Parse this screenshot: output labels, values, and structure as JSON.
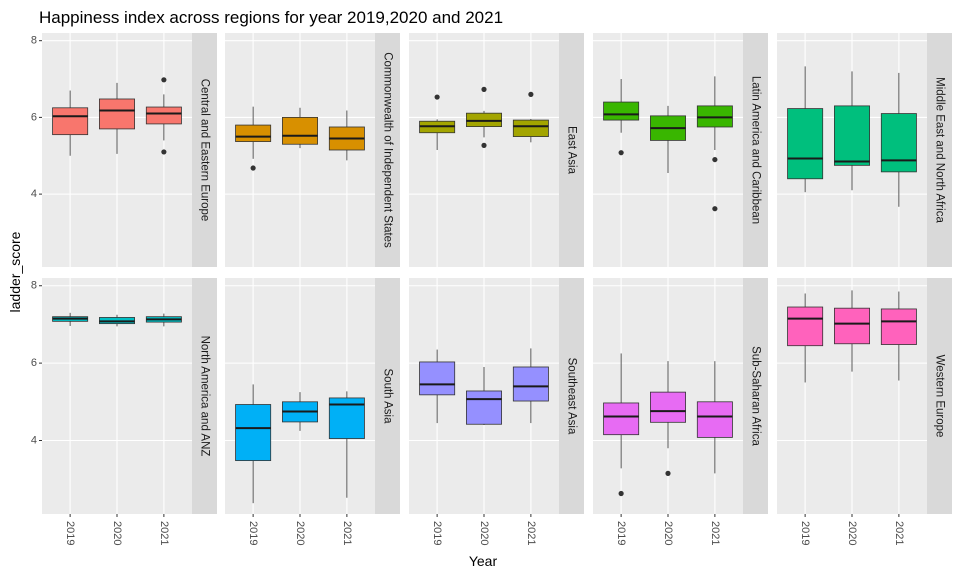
{
  "chart_data": {
    "type": "boxplot",
    "title": "Happiness index across regions for year 2019,2020 and 2021",
    "xlabel": "Year",
    "ylabel": "ladder_score",
    "categories": [
      "2019",
      "2020",
      "2021"
    ],
    "ylim": [
      2.1,
      8.2
    ],
    "yticks": [
      4,
      6,
      8
    ],
    "grid": true,
    "legend": "none",
    "facets": [
      {
        "region": "Central and Eastern Europe",
        "color": "#F8766D",
        "boxes": [
          {
            "year": "2019",
            "min": 5.0,
            "q1": 5.55,
            "median": 6.03,
            "q3": 6.25,
            "max": 6.7,
            "outliers": []
          },
          {
            "year": "2020",
            "min": 5.05,
            "q1": 5.7,
            "median": 6.18,
            "q3": 6.48,
            "max": 6.9,
            "outliers": []
          },
          {
            "year": "2021",
            "min": 5.4,
            "q1": 5.83,
            "median": 6.1,
            "q3": 6.27,
            "max": 6.6,
            "outliers": [
              6.98,
              5.1
            ]
          }
        ]
      },
      {
        "region": "Commonwealth of Independent States",
        "color": "#D89000",
        "boxes": [
          {
            "year": "2019",
            "min": 4.92,
            "q1": 5.37,
            "median": 5.5,
            "q3": 5.8,
            "max": 6.28,
            "outliers": [
              4.68
            ]
          },
          {
            "year": "2020",
            "min": 5.2,
            "q1": 5.3,
            "median": 5.52,
            "q3": 6.0,
            "max": 6.25,
            "outliers": []
          },
          {
            "year": "2021",
            "min": 4.88,
            "q1": 5.15,
            "median": 5.45,
            "q3": 5.75,
            "max": 6.18,
            "outliers": []
          }
        ]
      },
      {
        "region": "East Asia",
        "color": "#A3A500",
        "boxes": [
          {
            "year": "2019",
            "min": 5.15,
            "q1": 5.6,
            "median": 5.77,
            "q3": 5.9,
            "max": 5.95,
            "outliers": [
              6.53
            ]
          },
          {
            "year": "2020",
            "min": 5.48,
            "q1": 5.76,
            "median": 5.91,
            "q3": 6.11,
            "max": 6.17,
            "outliers": [
              6.73,
              5.27
            ]
          },
          {
            "year": "2021",
            "min": 5.35,
            "q1": 5.5,
            "median": 5.77,
            "q3": 5.93,
            "max": 5.96,
            "outliers": [
              6.6
            ]
          }
        ]
      },
      {
        "region": "Latin America and Caribbean",
        "color": "#39B600",
        "boxes": [
          {
            "year": "2019",
            "min": 5.6,
            "q1": 5.93,
            "median": 6.08,
            "q3": 6.4,
            "max": 7.0,
            "outliers": [
              5.08
            ]
          },
          {
            "year": "2020",
            "min": 4.55,
            "q1": 5.4,
            "median": 5.72,
            "q3": 6.04,
            "max": 6.3,
            "outliers": []
          },
          {
            "year": "2021",
            "min": 5.15,
            "q1": 5.75,
            "median": 6.0,
            "q3": 6.3,
            "max": 7.07,
            "outliers": [
              4.9,
              3.62
            ]
          }
        ]
      },
      {
        "region": "Middle East and North Africa",
        "color": "#00BF7D",
        "boxes": [
          {
            "year": "2019",
            "min": 4.05,
            "q1": 4.4,
            "median": 4.93,
            "q3": 6.23,
            "max": 7.33,
            "outliers": []
          },
          {
            "year": "2020",
            "min": 4.1,
            "q1": 4.75,
            "median": 4.85,
            "q3": 6.3,
            "max": 7.2,
            "outliers": []
          },
          {
            "year": "2021",
            "min": 3.67,
            "q1": 4.58,
            "median": 4.88,
            "q3": 6.1,
            "max": 7.16,
            "outliers": []
          }
        ]
      },
      {
        "region": "North America and ANZ",
        "color": "#00BFC4",
        "boxes": [
          {
            "year": "2019",
            "min": 6.96,
            "q1": 7.08,
            "median": 7.15,
            "q3": 7.2,
            "max": 7.3,
            "outliers": []
          },
          {
            "year": "2020",
            "min": 6.95,
            "q1": 7.02,
            "median": 7.08,
            "q3": 7.18,
            "max": 7.25,
            "outliers": []
          },
          {
            "year": "2021",
            "min": 6.95,
            "q1": 7.06,
            "median": 7.13,
            "q3": 7.2,
            "max": 7.28,
            "outliers": []
          }
        ]
      },
      {
        "region": "South Asia",
        "color": "#00B0F6",
        "boxes": [
          {
            "year": "2019",
            "min": 2.38,
            "q1": 3.48,
            "median": 4.32,
            "q3": 4.93,
            "max": 5.45,
            "outliers": []
          },
          {
            "year": "2020",
            "min": 4.25,
            "q1": 4.48,
            "median": 4.75,
            "q3": 5.0,
            "max": 5.25,
            "outliers": []
          },
          {
            "year": "2021",
            "min": 2.52,
            "q1": 4.05,
            "median": 4.93,
            "q3": 5.1,
            "max": 5.27,
            "outliers": []
          }
        ]
      },
      {
        "region": "Southeast Asia",
        "color": "#9590FF",
        "boxes": [
          {
            "year": "2019",
            "min": 4.45,
            "q1": 5.18,
            "median": 5.45,
            "q3": 6.03,
            "max": 6.35,
            "outliers": []
          },
          {
            "year": "2020",
            "min": 4.4,
            "q1": 4.42,
            "median": 5.07,
            "q3": 5.28,
            "max": 5.9,
            "outliers": []
          },
          {
            "year": "2021",
            "min": 4.45,
            "q1": 5.02,
            "median": 5.4,
            "q3": 5.9,
            "max": 6.38,
            "outliers": []
          }
        ]
      },
      {
        "region": "Sub-Saharan Africa",
        "color": "#E76BF3",
        "boxes": [
          {
            "year": "2019",
            "min": 3.28,
            "q1": 4.15,
            "median": 4.62,
            "q3": 4.97,
            "max": 6.25,
            "outliers": [
              2.63
            ]
          },
          {
            "year": "2020",
            "min": 3.8,
            "q1": 4.47,
            "median": 4.76,
            "q3": 5.25,
            "max": 6.05,
            "outliers": [
              3.15
            ]
          },
          {
            "year": "2021",
            "min": 3.15,
            "q1": 4.08,
            "median": 4.62,
            "q3": 5.0,
            "max": 6.05,
            "outliers": []
          }
        ]
      },
      {
        "region": "Western Europe",
        "color": "#FF62BC",
        "boxes": [
          {
            "year": "2019",
            "min": 5.5,
            "q1": 6.45,
            "median": 7.15,
            "q3": 7.45,
            "max": 7.8,
            "outliers": []
          },
          {
            "year": "2020",
            "min": 5.78,
            "q1": 6.5,
            "median": 7.02,
            "q3": 7.42,
            "max": 7.88,
            "outliers": []
          },
          {
            "year": "2021",
            "min": 5.55,
            "q1": 6.48,
            "median": 7.08,
            "q3": 7.4,
            "max": 7.85,
            "outliers": []
          }
        ]
      }
    ]
  }
}
